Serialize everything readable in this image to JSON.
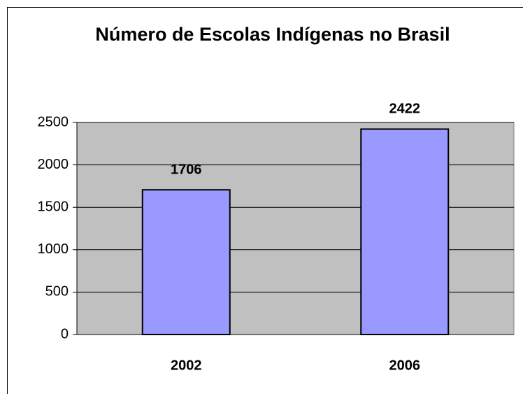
{
  "chart_data": {
    "type": "bar",
    "title": "Número de Escolas Indígenas no Brasil",
    "categories": [
      "2002",
      "2006"
    ],
    "values": [
      1706,
      2422
    ],
    "color": "#9999ff",
    "ylim": [
      0,
      2500
    ],
    "yticks": [
      0,
      500,
      1000,
      1500,
      2000,
      2500
    ],
    "grid": true
  }
}
